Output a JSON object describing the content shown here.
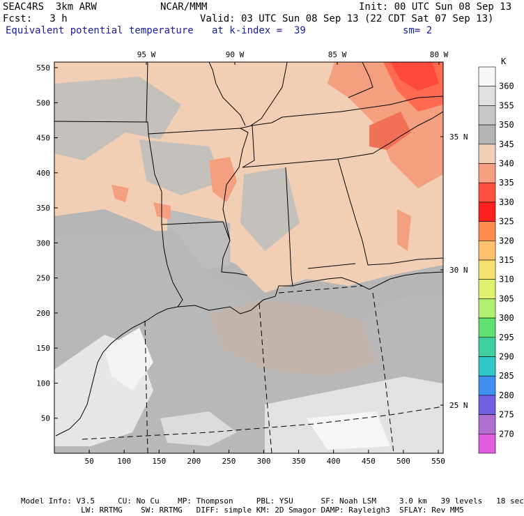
{
  "header": {
    "project": "SEAC4RS  3km ARW",
    "center": "NCAR/MMM",
    "init": "Init: 00 UTC Sun 08 Sep 13",
    "forecast": "Fcst:   3 h",
    "valid": "Valid: 03 UTC Sun 08 Sep 13 (22 CDT Sat 07 Sep 13)",
    "field": "Equivalent potential temperature",
    "level": "at k-index =  39",
    "smoothing": "sm= 2"
  },
  "map": {
    "x_ticks": [
      "50",
      "100",
      "150",
      "200",
      "250",
      "300",
      "350",
      "400",
      "450",
      "500",
      "550"
    ],
    "y_ticks": [
      "50",
      "100",
      "150",
      "200",
      "250",
      "300",
      "350",
      "400",
      "450",
      "500",
      "550"
    ],
    "lon_labels": [
      "95 W",
      "90 W",
      "85 W",
      "80 W"
    ],
    "lat_labels": [
      "35 N",
      "30 N",
      "25 N"
    ]
  },
  "colorbar": {
    "unit": "K",
    "levels": [
      "360",
      "355",
      "350",
      "345",
      "340",
      "335",
      "330",
      "325",
      "320",
      "315",
      "310",
      "305",
      "300",
      "295",
      "290",
      "285",
      "280",
      "275",
      "270"
    ],
    "colors": [
      "#f8f8f8",
      "#e0e0e0",
      "#c8c8c8",
      "#b4b4b4",
      "#f2cfb4",
      "#f4a080",
      "#ff5040",
      "#ff2020",
      "#ff8a50",
      "#ffc070",
      "#f5e070",
      "#e0f070",
      "#b0f070",
      "#60e070",
      "#40d0a0",
      "#30c8c8",
      "#4090f0",
      "#7060e0",
      "#b070d0",
      "#e060e0"
    ]
  },
  "footer": {
    "line1": "Model Info: V3.5     CU: No Cu    MP: Thompson     PBL: YSU      SF: Noah LSM     3.0 km   39 levels   18 sec",
    "line2": "             LW: RRTMG    SW: RRTMG   DIFF: simple KM: 2D Smagor DAMP: Rayleigh3  SFLAY: Rev MM5"
  }
}
